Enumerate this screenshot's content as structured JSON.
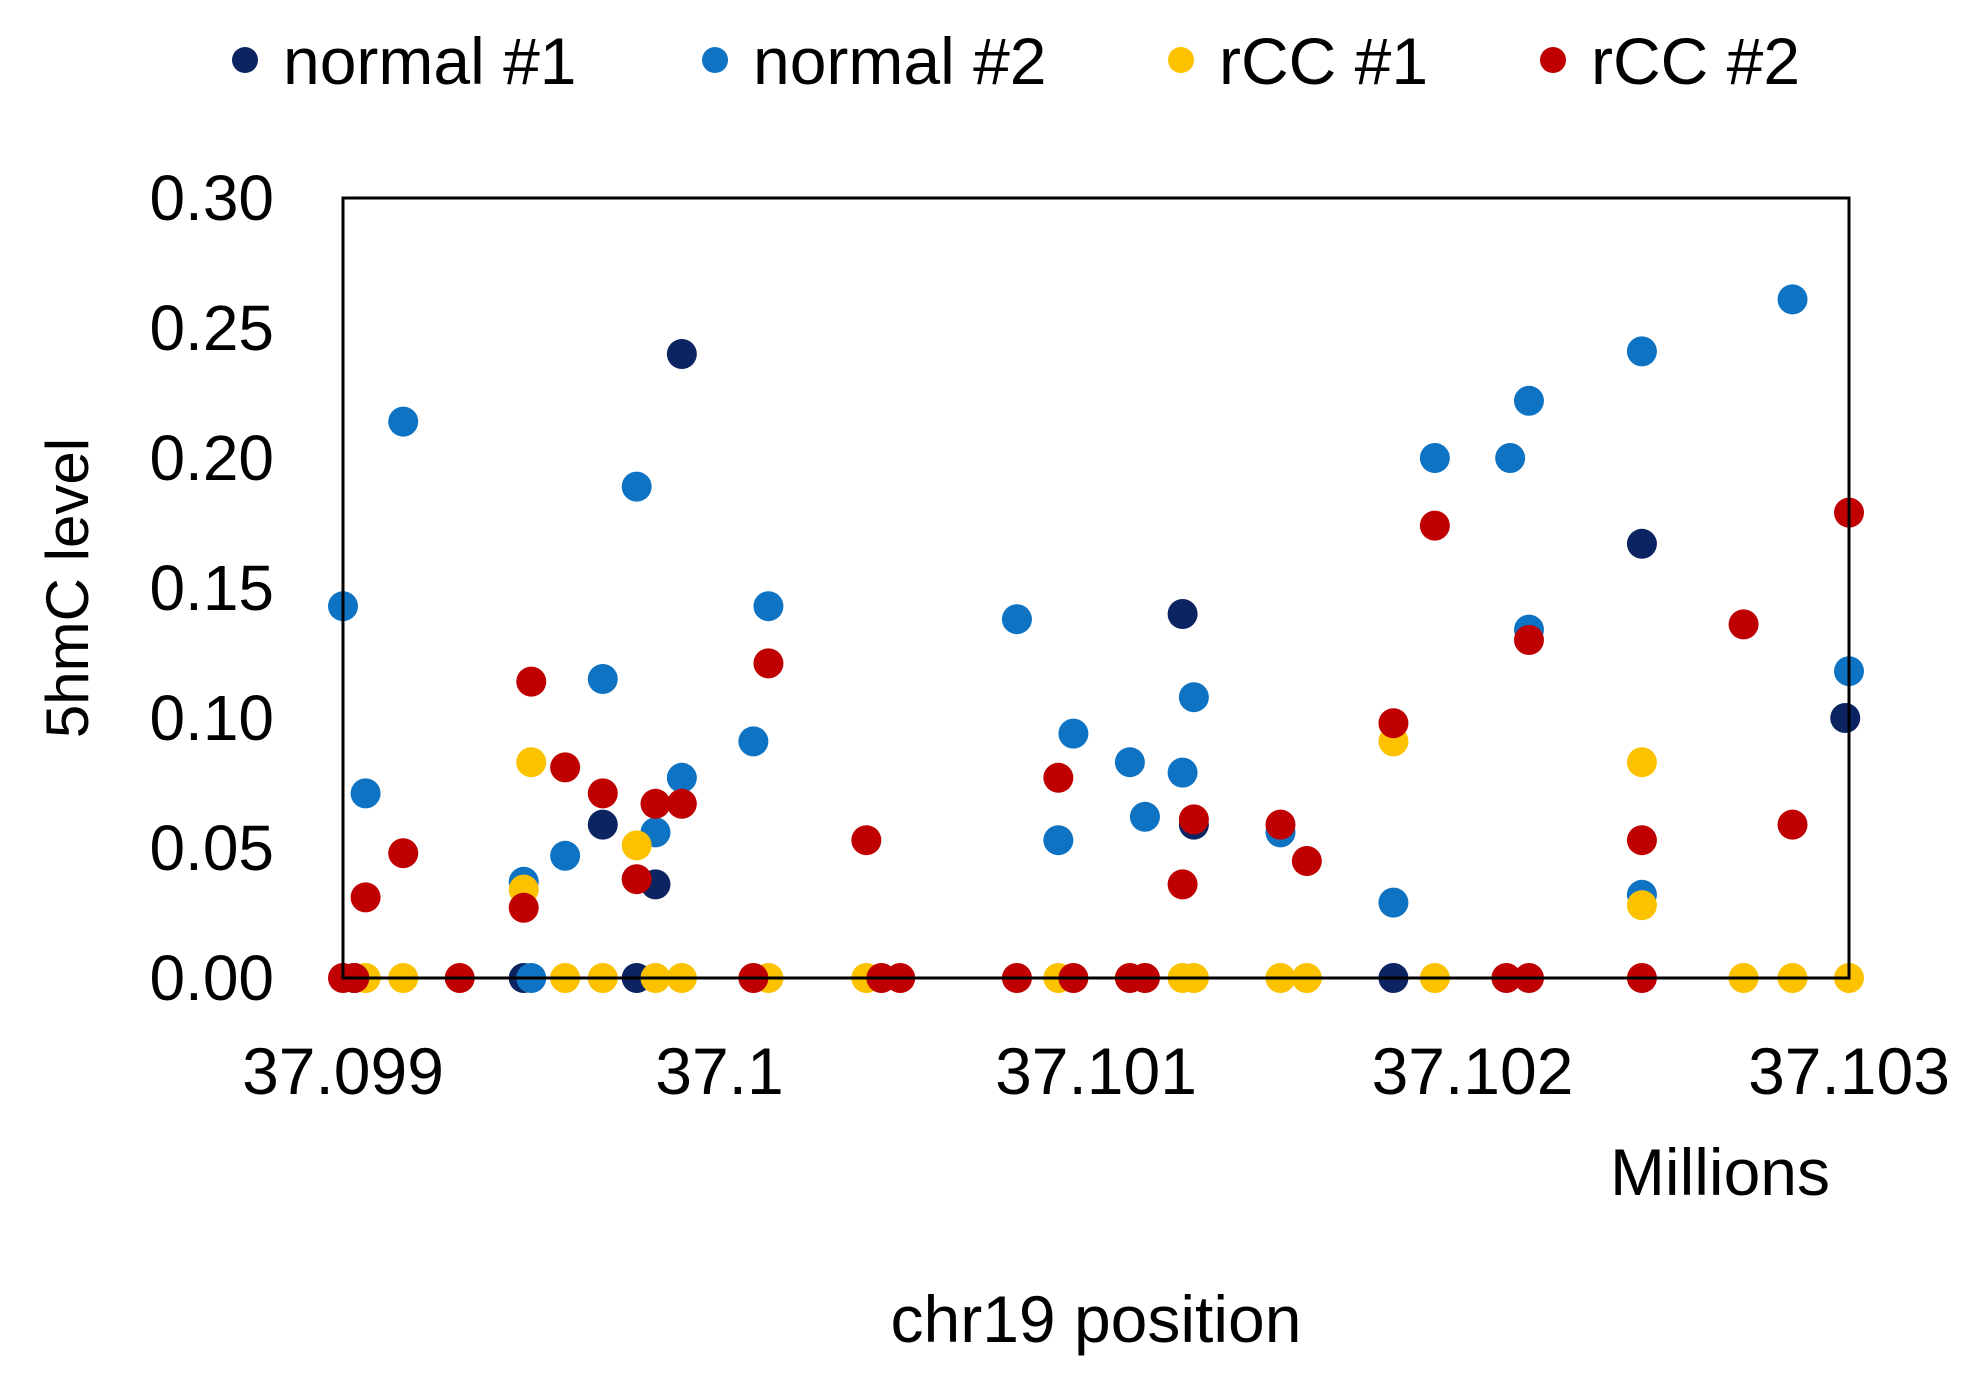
{
  "chart_data": {
    "type": "scatter",
    "xlabel": "chr19 position",
    "x_unit_label": "Millions",
    "ylabel": "5hmC level",
    "xlim": [
      37.099,
      37.103
    ],
    "ylim": [
      0,
      0.3
    ],
    "x_ticks": [
      37.099,
      37.1,
      37.101,
      37.102,
      37.103
    ],
    "x_tick_labels": [
      "37.099",
      "37.1",
      "37.101",
      "37.102",
      "37.103"
    ],
    "y_ticks": [
      0,
      0.05,
      0.1,
      0.15,
      0.2,
      0.25,
      0.3
    ],
    "y_tick_labels": [
      "0.00",
      "0.05",
      "0.10",
      "0.15",
      "0.20",
      "0.25",
      "0.30"
    ],
    "grid": false,
    "legend_position": "top",
    "series": [
      {
        "name": "normal #1",
        "color": "#0d2463",
        "points": [
          {
            "x": 37.09903,
            "y": 0
          },
          {
            "x": 37.09948,
            "y": 0
          },
          {
            "x": 37.09969,
            "y": 0.059
          },
          {
            "x": 37.09978,
            "y": 0
          },
          {
            "x": 37.09983,
            "y": 0.036
          },
          {
            "x": 37.0999,
            "y": 0.24
          },
          {
            "x": 37.10123,
            "y": 0.14
          },
          {
            "x": 37.10126,
            "y": 0.059
          },
          {
            "x": 37.10179,
            "y": 0
          },
          {
            "x": 37.10245,
            "y": 0.167
          },
          {
            "x": 37.10299,
            "y": 0.1
          }
        ]
      },
      {
        "name": "normal #2",
        "color": "#0f73c3",
        "points": [
          {
            "x": 37.099,
            "y": 0.143
          },
          {
            "x": 37.09906,
            "y": 0.071
          },
          {
            "x": 37.09916,
            "y": 0.214
          },
          {
            "x": 37.09948,
            "y": 0.037
          },
          {
            "x": 37.0995,
            "y": 0
          },
          {
            "x": 37.09959,
            "y": 0.047
          },
          {
            "x": 37.09969,
            "y": 0.115
          },
          {
            "x": 37.09978,
            "y": 0.189
          },
          {
            "x": 37.09983,
            "y": 0.056
          },
          {
            "x": 37.0999,
            "y": 0.077
          },
          {
            "x": 37.10009,
            "y": 0.091
          },
          {
            "x": 37.10013,
            "y": 0.143
          },
          {
            "x": 37.10079,
            "y": 0.138
          },
          {
            "x": 37.1009,
            "y": 0.053
          },
          {
            "x": 37.10094,
            "y": 0.094
          },
          {
            "x": 37.10109,
            "y": 0.083
          },
          {
            "x": 37.10113,
            "y": 0.062
          },
          {
            "x": 37.10123,
            "y": 0.079
          },
          {
            "x": 37.10126,
            "y": 0.108
          },
          {
            "x": 37.10149,
            "y": 0.056
          },
          {
            "x": 37.10179,
            "y": 0.029
          },
          {
            "x": 37.1019,
            "y": 0.2
          },
          {
            "x": 37.1021,
            "y": 0.2
          },
          {
            "x": 37.10215,
            "y": 0.134
          },
          {
            "x": 37.10215,
            "y": 0.222
          },
          {
            "x": 37.10245,
            "y": 0.241
          },
          {
            "x": 37.10245,
            "y": 0.032
          },
          {
            "x": 37.10285,
            "y": 0.261
          },
          {
            "x": 37.103,
            "y": 0.118
          }
        ]
      },
      {
        "name": "rCC #1",
        "color": "#fcc200",
        "points": [
          {
            "x": 37.09906,
            "y": 0
          },
          {
            "x": 37.09916,
            "y": 0
          },
          {
            "x": 37.09948,
            "y": 0.034
          },
          {
            "x": 37.0995,
            "y": 0.083
          },
          {
            "x": 37.09959,
            "y": 0
          },
          {
            "x": 37.09969,
            "y": 0
          },
          {
            "x": 37.09978,
            "y": 0.051
          },
          {
            "x": 37.09983,
            "y": 0
          },
          {
            "x": 37.0999,
            "y": 0
          },
          {
            "x": 37.10013,
            "y": 0
          },
          {
            "x": 37.10039,
            "y": 0
          },
          {
            "x": 37.1009,
            "y": 0
          },
          {
            "x": 37.10123,
            "y": 0
          },
          {
            "x": 37.10126,
            "y": 0
          },
          {
            "x": 37.10149,
            "y": 0
          },
          {
            "x": 37.10156,
            "y": 0
          },
          {
            "x": 37.10179,
            "y": 0.091
          },
          {
            "x": 37.1019,
            "y": 0
          },
          {
            "x": 37.10245,
            "y": 0.083
          },
          {
            "x": 37.10245,
            "y": 0.028
          },
          {
            "x": 37.10272,
            "y": 0
          },
          {
            "x": 37.10285,
            "y": 0
          },
          {
            "x": 37.103,
            "y": 0
          }
        ]
      },
      {
        "name": "rCC #2",
        "color": "#c00000",
        "points": [
          {
            "x": 37.099,
            "y": 0
          },
          {
            "x": 37.09903,
            "y": 0
          },
          {
            "x": 37.09906,
            "y": 0.031
          },
          {
            "x": 37.09916,
            "y": 0.048
          },
          {
            "x": 37.09931,
            "y": 0
          },
          {
            "x": 37.09948,
            "y": 0.027
          },
          {
            "x": 37.0995,
            "y": 0.114
          },
          {
            "x": 37.09959,
            "y": 0.081
          },
          {
            "x": 37.09969,
            "y": 0.071
          },
          {
            "x": 37.09978,
            "y": 0.038
          },
          {
            "x": 37.09983,
            "y": 0.067
          },
          {
            "x": 37.0999,
            "y": 0.067
          },
          {
            "x": 37.10009,
            "y": 0
          },
          {
            "x": 37.10013,
            "y": 0.121
          },
          {
            "x": 37.10039,
            "y": 0.053
          },
          {
            "x": 37.10043,
            "y": 0
          },
          {
            "x": 37.10048,
            "y": 0
          },
          {
            "x": 37.10079,
            "y": 0
          },
          {
            "x": 37.1009,
            "y": 0.077
          },
          {
            "x": 37.10094,
            "y": 0
          },
          {
            "x": 37.10109,
            "y": 0
          },
          {
            "x": 37.10113,
            "y": 0
          },
          {
            "x": 37.10123,
            "y": 0.036
          },
          {
            "x": 37.10126,
            "y": 0.061
          },
          {
            "x": 37.10149,
            "y": 0.059
          },
          {
            "x": 37.10156,
            "y": 0.045
          },
          {
            "x": 37.10179,
            "y": 0.098
          },
          {
            "x": 37.1019,
            "y": 0.174
          },
          {
            "x": 37.10209,
            "y": 0
          },
          {
            "x": 37.10215,
            "y": 0
          },
          {
            "x": 37.10215,
            "y": 0.13
          },
          {
            "x": 37.10245,
            "y": 0.053
          },
          {
            "x": 37.10245,
            "y": 0
          },
          {
            "x": 37.10272,
            "y": 0.136
          },
          {
            "x": 37.10285,
            "y": 0.059
          },
          {
            "x": 37.103,
            "y": 0.179
          }
        ]
      }
    ]
  }
}
